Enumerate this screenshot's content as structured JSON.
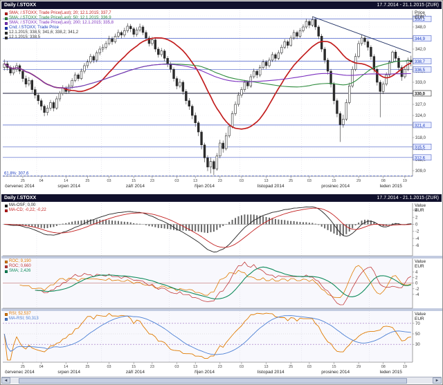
{
  "titlebar1": {
    "left": "Daily /.STOXX",
    "right": "17.7.2014 - 21.1.2015 (ZUR)"
  },
  "titlebar2": {
    "left": "Daily /.STOXX",
    "right": "17.7.2014 - 21.1.2015 (ZUR)"
  },
  "panels": {
    "main": {
      "axis_unit_top": "Price",
      "axis_unit_bottom": "EUR",
      "legend": [
        {
          "color": "#c21d1d",
          "text": "SMA; /.STOXX; Trade Price(Last); 20;  12.1.2015;  337,7"
        },
        {
          "color": "#2e8b3d",
          "text": "SMA; /.STOXX; Trade Price(Last); 50;  12.1.2015;  336,9"
        },
        {
          "color": "#7b2fbf",
          "text": "SMA; /.STOXX; Trade Price(Last); 200;  12.1.2015;  335,8"
        },
        {
          "color": "#1a3bbf",
          "text": "Cnd; /.STOXX; Trade Price"
        },
        {
          "color": "#333333",
          "text": "12.1.2015; 338,5; 341,6; 338,2; 341,2"
        },
        {
          "color": "#333333",
          "text": "12.1.2015;  338,5"
        }
      ]
    },
    "macd": {
      "axis_unit_top": "Value",
      "axis_unit_bottom": "EUR",
      "legend": [
        {
          "color": "#222222",
          "text": "MA-OSF; 0,00"
        },
        {
          "color": "#c21d1d",
          "text": "MA-CD; -0,22; -0,22"
        }
      ]
    },
    "roc": {
      "axis_unit_top": "Value",
      "axis_unit_bottom": "EUR",
      "legend": [
        {
          "color": "#e07b00",
          "text": "ROC; 9,190"
        },
        {
          "color": "#c23a3a",
          "text": "ROC; 0,660"
        },
        {
          "color": "#0e8a5a",
          "text": "SMA; 2,426"
        }
      ]
    },
    "rsi": {
      "axis_unit_top": "Value",
      "axis_unit_bottom": "EUR",
      "legend": [
        {
          "color": "#e07b00",
          "text": "RSI; 52,537"
        },
        {
          "color": "#4a7fd4",
          "text": "MA-RSI; 50,313"
        }
      ]
    }
  },
  "scrollbar": {
    "left_arrow": "◄",
    "right_arrow": "►"
  },
  "chart_data": {
    "type": "candlestick",
    "instrument": "/.STOXX",
    "interval": "Daily",
    "currency": "EUR",
    "date_range": "17.7.2014 - 21.1.2015",
    "y_ticks": [
      {
        "v": 351,
        "label": "351,0"
      },
      {
        "v": 348,
        "label": "348,0"
      },
      {
        "v": 345,
        "label": "345,0"
      },
      {
        "v": 342,
        "label": "342,0"
      },
      {
        "v": 339,
        "label": "339,0"
      },
      {
        "v": 336,
        "label": "336,0"
      },
      {
        "v": 333,
        "label": "333,0"
      },
      {
        "v": 330,
        "label": "330,0"
      },
      {
        "v": 327,
        "label": "327,0"
      },
      {
        "v": 324,
        "label": "324,0"
      },
      {
        "v": 321,
        "label": "321,0"
      },
      {
        "v": 318,
        "label": "318,0"
      },
      {
        "v": 315,
        "label": "315,0"
      },
      {
        "v": 312,
        "label": "312,0"
      },
      {
        "v": 309,
        "label": "309,0"
      }
    ],
    "levels": [
      {
        "value": 350.2,
        "label": "350,2"
      },
      {
        "value": 344.9,
        "label": "344,9"
      },
      {
        "value": 338.7,
        "label": "338,7"
      },
      {
        "value": 336.5,
        "label": "336,5"
      },
      {
        "value": 330.0,
        "label": "330,0",
        "bold": true
      },
      {
        "value": 321.4,
        "label": "321,4"
      },
      {
        "value": 315.5,
        "label": "315,5"
      },
      {
        "value": 312.6,
        "label": "312,6"
      },
      {
        "value": 307.6,
        "label": "61,8%: 307,6",
        "fib": true
      }
    ],
    "trendlines": [
      {
        "from": [
          100,
          350.8
        ],
        "to": [
          132,
          341.0
        ],
        "color": "#223366"
      }
    ],
    "overlays": [
      {
        "name": "SMA 20",
        "period": 20,
        "color": "#c21d1d",
        "width": 1.7
      },
      {
        "name": "SMA 50",
        "period": 50,
        "color": "#2e8b3d",
        "width": 1.1
      },
      {
        "name": "SMA 200",
        "period": 200,
        "color": "#7b2fbf",
        "width": 1.1
      }
    ],
    "month_sections": [
      {
        "label": "červenec 2014",
        "start": 0
      },
      {
        "label": "srpen 2014",
        "start": 11
      },
      {
        "label": "září 2014",
        "start": 32
      },
      {
        "label": "říjen 2014",
        "start": 54
      },
      {
        "label": "listopad 2014",
        "start": 77
      },
      {
        "label": "prosinec 2014",
        "start": 97
      },
      {
        "label": "leden 2015",
        "start": 119
      }
    ],
    "day_ticks": [
      {
        "index": 6,
        "label": "25"
      },
      {
        "index": 12,
        "label": "04"
      },
      {
        "index": 20,
        "label": "14"
      },
      {
        "index": 27,
        "label": "25"
      },
      {
        "index": 34,
        "label": "03"
      },
      {
        "index": 42,
        "label": "15"
      },
      {
        "index": 48,
        "label": "23"
      },
      {
        "index": 56,
        "label": "03"
      },
      {
        "index": 62,
        "label": "13"
      },
      {
        "index": 70,
        "label": "23"
      },
      {
        "index": 77,
        "label": "03"
      },
      {
        "index": 85,
        "label": "13"
      },
      {
        "index": 93,
        "label": "25"
      },
      {
        "index": 99,
        "label": "03"
      },
      {
        "index": 107,
        "label": "15"
      },
      {
        "index": 115,
        "label": "29"
      },
      {
        "index": 123,
        "label": "08"
      },
      {
        "index": 130,
        "label": "19"
      }
    ],
    "candles": [
      [
        337.0,
        339.2,
        336.2,
        338.0
      ],
      [
        338.0,
        338.8,
        336.2,
        337.0
      ],
      [
        337.0,
        337.6,
        334.8,
        335.5
      ],
      [
        335.5,
        337.4,
        334.9,
        336.5
      ],
      [
        336.5,
        338.3,
        335.8,
        337.5
      ],
      [
        337.5,
        338.0,
        335.2,
        336.0
      ],
      [
        336.0,
        336.6,
        333.1,
        334.0
      ],
      [
        334.0,
        334.8,
        331.6,
        332.5
      ],
      [
        332.5,
        334.4,
        331.9,
        333.5
      ],
      [
        333.5,
        333.9,
        330.2,
        331.0
      ],
      [
        331.0,
        331.8,
        328.6,
        329.5
      ],
      [
        329.5,
        330.0,
        327.0,
        328.0
      ],
      [
        328.0,
        328.6,
        325.4,
        326.5
      ],
      [
        326.5,
        327.0,
        323.8,
        324.8
      ],
      [
        324.8,
        326.8,
        324.0,
        326.0
      ],
      [
        326.0,
        328.2,
        325.3,
        327.5
      ],
      [
        327.5,
        328.0,
        325.1,
        326.0
      ],
      [
        326.0,
        329.2,
        325.5,
        328.5
      ],
      [
        328.5,
        330.6,
        327.8,
        330.0
      ],
      [
        330.0,
        332.2,
        329.4,
        331.5
      ],
      [
        331.5,
        332.0,
        329.8,
        330.5
      ],
      [
        330.5,
        332.6,
        330.0,
        332.0
      ],
      [
        332.0,
        334.1,
        331.3,
        333.5
      ],
      [
        333.5,
        335.7,
        333.0,
        335.0
      ],
      [
        335.0,
        335.5,
        333.3,
        334.0
      ],
      [
        334.0,
        336.7,
        333.6,
        336.0
      ],
      [
        336.0,
        338.2,
        335.4,
        337.5
      ],
      [
        337.5,
        339.2,
        336.8,
        338.5
      ],
      [
        338.5,
        340.7,
        338.0,
        340.0
      ],
      [
        340.0,
        340.5,
        338.2,
        339.0
      ],
      [
        339.0,
        341.6,
        338.4,
        341.0
      ],
      [
        341.0,
        342.8,
        340.3,
        342.0
      ],
      [
        342.0,
        343.3,
        341.2,
        342.5
      ],
      [
        342.5,
        344.2,
        341.9,
        343.5
      ],
      [
        343.5,
        345.6,
        343.0,
        344.8
      ],
      [
        344.8,
        345.4,
        343.2,
        344.0
      ],
      [
        344.0,
        346.2,
        343.5,
        345.5
      ],
      [
        345.5,
        347.3,
        344.9,
        346.5
      ],
      [
        346.5,
        347.0,
        344.9,
        345.8
      ],
      [
        345.8,
        347.8,
        345.2,
        347.0
      ],
      [
        347.0,
        349.0,
        346.4,
        348.2
      ],
      [
        348.2,
        348.8,
        346.6,
        347.5
      ],
      [
        347.5,
        348.0,
        345.2,
        346.0
      ],
      [
        346.0,
        347.9,
        345.4,
        347.2
      ],
      [
        347.2,
        348.9,
        346.6,
        348.0
      ],
      [
        348.0,
        348.5,
        345.8,
        346.5
      ],
      [
        346.5,
        347.1,
        344.2,
        345.0
      ],
      [
        345.0,
        345.6,
        342.7,
        343.5
      ],
      [
        343.5,
        345.3,
        342.9,
        344.5
      ],
      [
        344.5,
        345.0,
        341.2,
        342.0
      ],
      [
        342.0,
        342.6,
        339.7,
        340.5
      ],
      [
        340.5,
        342.3,
        339.9,
        341.5
      ],
      [
        341.5,
        342.0,
        338.7,
        339.5
      ],
      [
        339.5,
        340.1,
        337.1,
        338.0
      ],
      [
        338.0,
        338.5,
        335.6,
        336.5
      ],
      [
        336.5,
        337.0,
        333.2,
        334.0
      ],
      [
        334.0,
        334.6,
        331.1,
        332.0
      ],
      [
        332.0,
        333.9,
        331.4,
        333.0
      ],
      [
        333.0,
        333.5,
        329.6,
        330.5
      ],
      [
        330.5,
        331.1,
        327.0,
        328.0
      ],
      [
        328.0,
        328.7,
        325.5,
        326.5
      ],
      [
        326.5,
        327.0,
        323.0,
        324.0
      ],
      [
        324.0,
        324.8,
        320.9,
        322.0
      ],
      [
        322.0,
        322.5,
        318.4,
        319.5
      ],
      [
        319.5,
        320.0,
        314.8,
        316.0
      ],
      [
        316.0,
        316.6,
        311.3,
        312.5
      ],
      [
        312.5,
        313.2,
        308.9,
        310.0
      ],
      [
        310.0,
        312.6,
        308.3,
        311.5
      ],
      [
        311.5,
        312.0,
        307.8,
        309.5
      ],
      [
        309.5,
        313.8,
        309.0,
        313.0
      ],
      [
        313.0,
        317.4,
        312.4,
        316.5
      ],
      [
        316.5,
        317.2,
        313.9,
        315.0
      ],
      [
        315.0,
        319.3,
        314.5,
        318.5
      ],
      [
        318.5,
        321.8,
        317.9,
        321.0
      ],
      [
        321.0,
        325.2,
        320.5,
        324.5
      ],
      [
        324.5,
        327.8,
        323.9,
        327.0
      ],
      [
        327.0,
        330.3,
        326.4,
        329.5
      ],
      [
        329.5,
        331.7,
        328.8,
        331.0
      ],
      [
        331.0,
        333.6,
        330.4,
        333.0
      ],
      [
        333.0,
        333.5,
        331.2,
        332.0
      ],
      [
        332.0,
        335.2,
        331.5,
        334.5
      ],
      [
        334.5,
        336.7,
        334.0,
        336.0
      ],
      [
        336.0,
        336.5,
        334.1,
        335.0
      ],
      [
        335.0,
        337.7,
        334.4,
        337.0
      ],
      [
        337.0,
        339.2,
        336.5,
        338.5
      ],
      [
        338.5,
        339.0,
        336.6,
        337.5
      ],
      [
        337.5,
        339.7,
        337.0,
        339.0
      ],
      [
        339.0,
        341.2,
        338.5,
        340.5
      ],
      [
        340.5,
        341.0,
        338.7,
        339.5
      ],
      [
        339.5,
        341.7,
        339.0,
        341.0
      ],
      [
        341.0,
        343.2,
        340.5,
        342.5
      ],
      [
        342.5,
        344.7,
        342.0,
        344.0
      ],
      [
        344.0,
        344.5,
        342.2,
        343.0
      ],
      [
        343.0,
        345.7,
        342.6,
        345.0
      ],
      [
        345.0,
        347.2,
        344.5,
        346.5
      ],
      [
        346.5,
        347.0,
        344.7,
        345.5
      ],
      [
        345.5,
        347.7,
        345.0,
        347.0
      ],
      [
        347.0,
        348.7,
        346.5,
        348.0
      ],
      [
        348.0,
        350.2,
        347.5,
        349.5
      ],
      [
        349.5,
        350.0,
        347.7,
        348.5
      ],
      [
        348.5,
        350.8,
        348.0,
        350.0
      ],
      [
        350.0,
        350.5,
        347.2,
        348.0
      ],
      [
        348.0,
        348.5,
        344.7,
        345.5
      ],
      [
        345.5,
        346.1,
        341.2,
        342.0
      ],
      [
        342.0,
        342.6,
        338.1,
        339.0
      ],
      [
        339.0,
        339.6,
        335.1,
        336.0
      ],
      [
        336.0,
        336.6,
        331.6,
        332.5
      ],
      [
        332.5,
        333.1,
        327.0,
        328.0
      ],
      [
        328.0,
        328.6,
        323.5,
        324.5
      ],
      [
        324.5,
        325.1,
        316.8,
        321.5
      ],
      [
        321.5,
        324.2,
        320.7,
        323.0
      ],
      [
        323.0,
        328.4,
        322.5,
        327.5
      ],
      [
        327.5,
        332.9,
        327.0,
        332.0
      ],
      [
        332.0,
        337.3,
        331.5,
        336.5
      ],
      [
        336.5,
        340.8,
        336.0,
        340.0
      ],
      [
        340.0,
        344.3,
        339.5,
        343.5
      ],
      [
        343.5,
        345.9,
        342.9,
        345.0
      ],
      [
        345.0,
        345.5,
        343.1,
        344.0
      ],
      [
        344.0,
        344.6,
        341.6,
        342.5
      ],
      [
        342.5,
        343.0,
        339.1,
        340.0
      ],
      [
        340.0,
        340.6,
        335.6,
        336.5
      ],
      [
        336.5,
        337.1,
        332.1,
        333.0
      ],
      [
        333.0,
        333.6,
        323.5,
        330.5
      ],
      [
        330.5,
        333.2,
        329.8,
        332.5
      ],
      [
        332.5,
        335.7,
        332.0,
        335.0
      ],
      [
        335.0,
        339.0,
        334.4,
        338.5
      ],
      [
        338.5,
        341.6,
        338.2,
        341.2
      ],
      [
        341.2,
        341.8,
        338.6,
        339.5
      ],
      [
        339.5,
        340.1,
        336.1,
        337.0
      ],
      [
        337.0,
        337.6,
        333.4,
        334.5
      ],
      [
        334.5,
        337.2,
        334.0,
        336.5
      ],
      [
        336.5,
        339.7,
        336.0,
        339.0
      ],
      [
        339.0,
        340.2,
        337.3,
        338.5
      ]
    ],
    "indicators": {
      "macd": {
        "fast": 12,
        "slow": 26,
        "signal": 9,
        "ticks": [
          4,
          2,
          0,
          -2,
          -4,
          -6
        ],
        "colors": {
          "macd": "#222222",
          "signal": "#c21d1d",
          "hist": "#666666"
        }
      },
      "roc": {
        "period_fast": 5,
        "period_slow": 10,
        "sma": 10,
        "ticks": [
          4,
          2,
          0,
          -2,
          -4
        ],
        "colors": {
          "fast": "#e07b00",
          "slow": "#c23a3a",
          "sma": "#0e8a5a"
        }
      },
      "rsi": {
        "period": 14,
        "ma": 14,
        "ticks": [
          70,
          50,
          30
        ],
        "bands": [
          30,
          70
        ],
        "colors": {
          "rsi": "#e07b00",
          "ma": "#4a7fd4"
        }
      }
    }
  }
}
